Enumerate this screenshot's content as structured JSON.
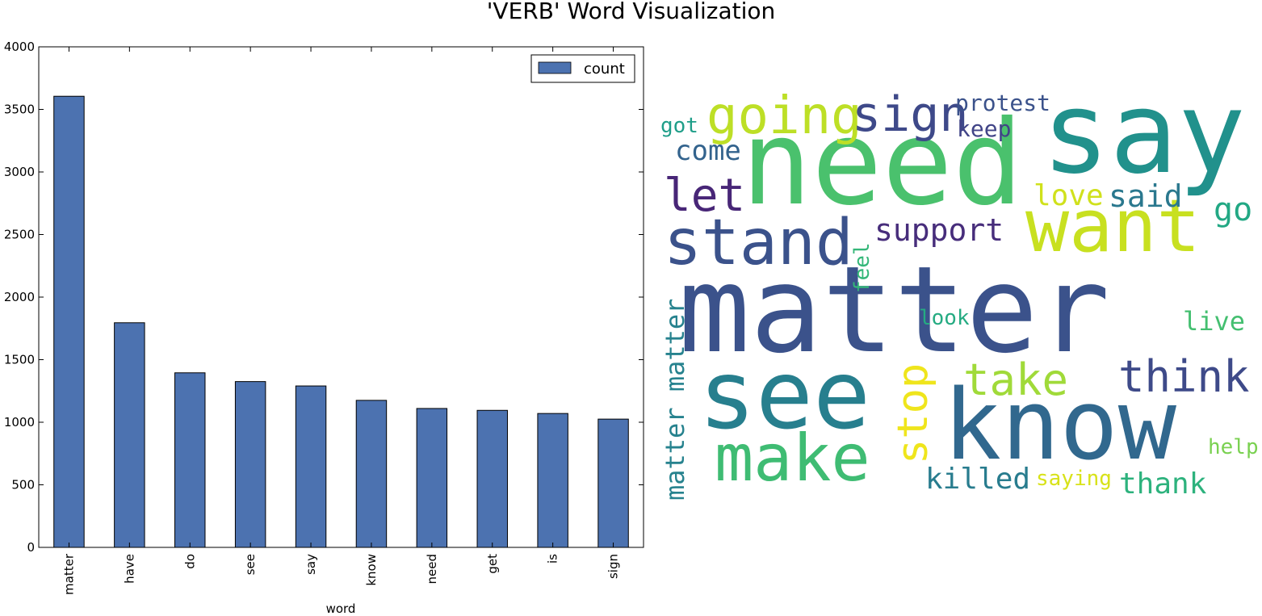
{
  "figure": {
    "title": "'VERB' Word Visualization"
  },
  "chart_data": [
    {
      "type": "bar",
      "categories": [
        "matter",
        "have",
        "do",
        "see",
        "say",
        "know",
        "need",
        "get",
        "is",
        "sign"
      ],
      "series": [
        {
          "name": "count",
          "values": [
            3605,
            1795,
            1395,
            1325,
            1290,
            1175,
            1110,
            1095,
            1070,
            1025
          ],
          "color": "#4c72b0"
        }
      ],
      "title": "",
      "xlabel": "word",
      "ylabel": "",
      "ylim": [
        0,
        4000
      ],
      "yticks": [
        0,
        500,
        1000,
        1500,
        2000,
        2500,
        3000,
        3500,
        4000
      ],
      "grid": false,
      "legend_position": "top-right",
      "x_tick_rotation": "vertical"
    },
    {
      "type": "wordcloud",
      "background": "#ffffff",
      "colormap": "viridis",
      "words": [
        {
          "text": "matter",
          "color": "#3b528b",
          "orientation": "horizontal"
        },
        {
          "text": "need",
          "color": "#4ac16d",
          "orientation": "horizontal"
        },
        {
          "text": "say",
          "color": "#21918c",
          "orientation": "horizontal"
        },
        {
          "text": "see",
          "color": "#277f8e",
          "orientation": "horizontal"
        },
        {
          "text": "know",
          "color": "#31688e",
          "orientation": "horizontal"
        },
        {
          "text": "want",
          "color": "#c8e020",
          "orientation": "horizontal"
        },
        {
          "text": "stand",
          "color": "#3b528b",
          "orientation": "horizontal"
        },
        {
          "text": "make",
          "color": "#3fbc73",
          "orientation": "horizontal"
        },
        {
          "text": "going",
          "color": "#bddf26",
          "orientation": "horizontal"
        },
        {
          "text": "sign",
          "color": "#3e4989",
          "orientation": "horizontal"
        },
        {
          "text": "let",
          "color": "#482677",
          "orientation": "horizontal"
        },
        {
          "text": "think",
          "color": "#3e4a89",
          "orientation": "horizontal"
        },
        {
          "text": "take",
          "color": "#a0da39",
          "orientation": "horizontal"
        },
        {
          "text": "stop",
          "color": "#efe51c",
          "orientation": "vertical"
        },
        {
          "text": "matter matter",
          "color": "#26828e",
          "orientation": "vertical"
        },
        {
          "text": "support",
          "color": "#472d7b",
          "orientation": "horizontal"
        },
        {
          "text": "go",
          "color": "#22a884",
          "orientation": "horizontal"
        },
        {
          "text": "said",
          "color": "#2a788e",
          "orientation": "horizontal"
        },
        {
          "text": "love",
          "color": "#d0e11c",
          "orientation": "horizontal"
        },
        {
          "text": "come",
          "color": "#33638d",
          "orientation": "horizontal"
        },
        {
          "text": "killed",
          "color": "#287c8e",
          "orientation": "horizontal"
        },
        {
          "text": "thank",
          "color": "#2db27d",
          "orientation": "horizontal"
        },
        {
          "text": "protest",
          "color": "#3b528b",
          "orientation": "horizontal"
        },
        {
          "text": "live",
          "color": "#44bf70",
          "orientation": "horizontal"
        },
        {
          "text": "keep",
          "color": "#414487",
          "orientation": "horizontal"
        },
        {
          "text": "got",
          "color": "#1f9e89",
          "orientation": "horizontal"
        },
        {
          "text": "saying",
          "color": "#d8e219",
          "orientation": "horizontal"
        },
        {
          "text": "look",
          "color": "#25ab82",
          "orientation": "horizontal"
        },
        {
          "text": "help",
          "color": "#7ad151",
          "orientation": "horizontal"
        },
        {
          "text": "feel",
          "color": "#35b779",
          "orientation": "vertical"
        }
      ]
    }
  ]
}
